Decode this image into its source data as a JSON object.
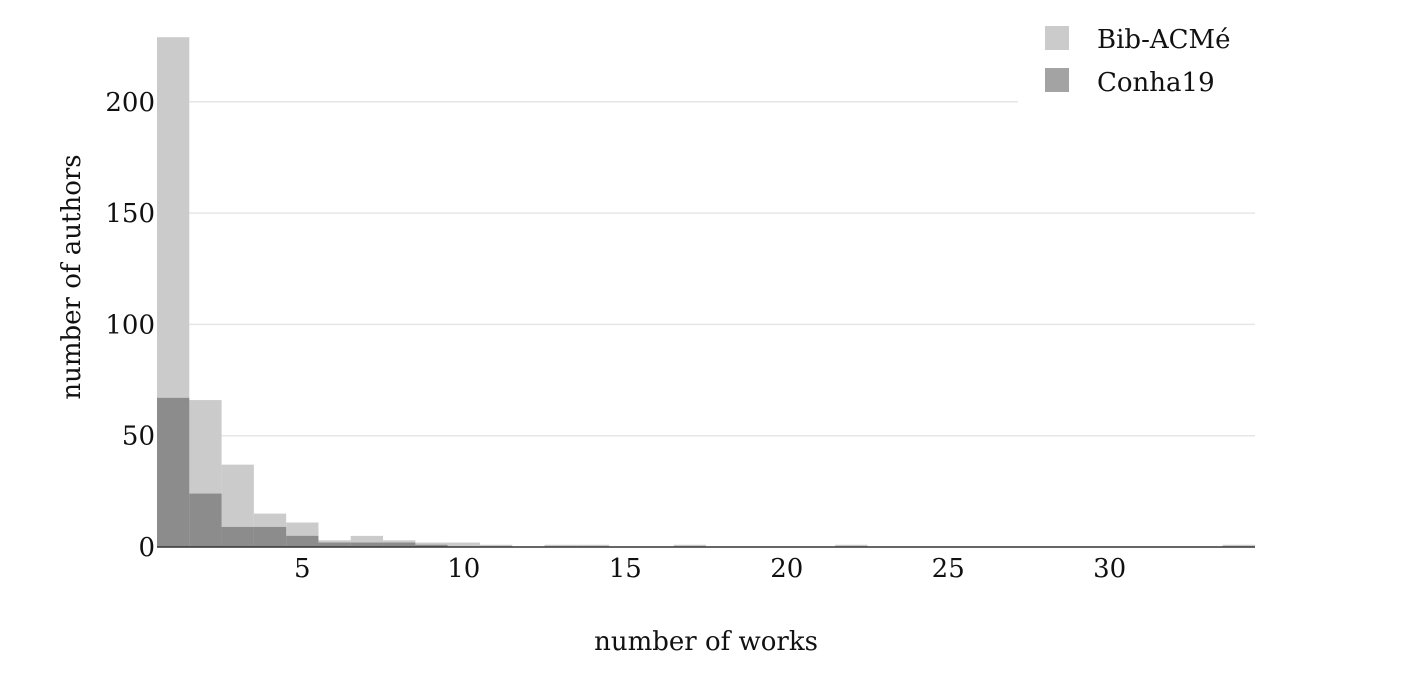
{
  "chart_data": {
    "type": "bar",
    "xlabel": "number of works",
    "ylabel": "number of authors",
    "xlim": [
      0.5,
      34.5
    ],
    "ylim": [
      0,
      230
    ],
    "x_ticks": [
      5,
      10,
      15,
      20,
      25,
      30
    ],
    "y_ticks": [
      0,
      50,
      100,
      150,
      200
    ],
    "grid": "horizontal",
    "legend_position": "top-right",
    "series": [
      {
        "name": "Bib-ACMé",
        "color": "#cbcbcb",
        "x": [
          1,
          2,
          3,
          4,
          5,
          6,
          7,
          8,
          9,
          10,
          11,
          12,
          13,
          14,
          15,
          16,
          17,
          18,
          19,
          20,
          21,
          22,
          23,
          24,
          25,
          26,
          27,
          28,
          29,
          30,
          31,
          32,
          33,
          34
        ],
        "values": [
          229,
          66,
          37,
          15,
          11,
          3,
          5,
          3,
          2,
          2,
          1,
          0,
          1,
          1,
          0,
          0,
          1,
          0,
          0,
          0,
          0,
          1,
          0,
          0,
          0,
          0,
          0,
          0,
          0,
          0,
          0,
          0,
          0,
          1
        ]
      },
      {
        "name": "Conha19",
        "color": "#8c8c8c",
        "x": [
          1,
          2,
          3,
          4,
          5,
          6,
          7,
          8,
          9,
          10,
          11,
          12,
          13,
          14,
          15,
          16,
          17,
          18,
          19,
          20,
          21,
          22,
          23,
          24,
          25,
          26,
          27,
          28,
          29,
          30,
          31,
          32,
          33,
          34
        ],
        "values": [
          67,
          24,
          9,
          9,
          5,
          2,
          2,
          2,
          1,
          0,
          0,
          0,
          0,
          0,
          0,
          0,
          0,
          0,
          0,
          0,
          0,
          0,
          0,
          0,
          0,
          0,
          0,
          0,
          0,
          0,
          0,
          0,
          0,
          0
        ]
      }
    ]
  },
  "legend": {
    "items": [
      {
        "label": "Bib-ACMé",
        "color": "#cbcbcb"
      },
      {
        "label": "Conha19",
        "color": "#a3a3a3"
      }
    ]
  }
}
